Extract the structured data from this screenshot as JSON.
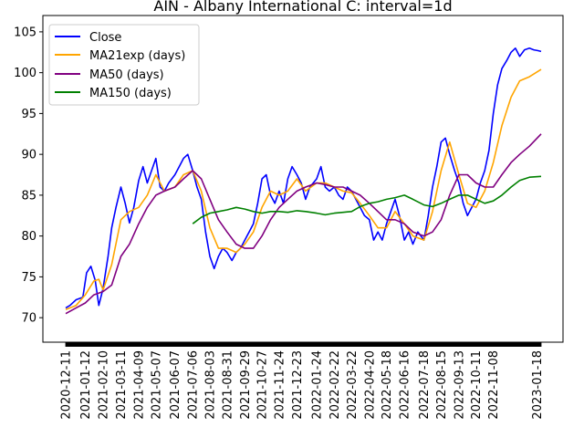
{
  "chart_data": {
    "type": "line",
    "title": "AIN - Albany International C: interval=1d",
    "xlabel": "",
    "ylabel": "",
    "ylim": [
      67,
      107
    ],
    "yticks": [
      70,
      75,
      80,
      85,
      90,
      95,
      100,
      105
    ],
    "x_start": "2020-12-11",
    "x_end": "2023-01-25",
    "xticks": [
      "2020-12-11",
      "2021-01-12",
      "2021-02-10",
      "2021-03-11",
      "2021-04-09",
      "2021-05-07",
      "2021-06-07",
      "2021-07-06",
      "2021-08-03",
      "2021-08-31",
      "2021-09-29",
      "2021-10-27",
      "2021-11-24",
      "2021-12-23",
      "2022-01-24",
      "2022-02-22",
      "2022-03-22",
      "2022-04-20",
      "2022-05-18",
      "2022-06-16",
      "2022-07-18",
      "2022-08-15",
      "2022-09-13",
      "2022-10-11",
      "2022-11-08",
      "2023-01-18"
    ],
    "legend": {
      "placement": "top-left",
      "entries": [
        "Close",
        "MA21exp (days)",
        "MA50 (days)",
        "MA150 (days)"
      ]
    },
    "series": [
      {
        "name": "Close",
        "color": "#0000ff",
        "points": [
          [
            "2020-12-11",
            71.2
          ],
          [
            "2020-12-18",
            71.5
          ],
          [
            "2020-12-28",
            72.2
          ],
          [
            "2021-01-08",
            72.5
          ],
          [
            "2021-01-14",
            75.5
          ],
          [
            "2021-01-21",
            76.3
          ],
          [
            "2021-01-28",
            74.6
          ],
          [
            "2021-02-03",
            71.5
          ],
          [
            "2021-02-10",
            73.6
          ],
          [
            "2021-02-18",
            77.5
          ],
          [
            "2021-02-24",
            81.0
          ],
          [
            "2021-03-03",
            83.5
          ],
          [
            "2021-03-11",
            86.0
          ],
          [
            "2021-03-18",
            84.0
          ],
          [
            "2021-03-25",
            81.6
          ],
          [
            "2021-04-01",
            83.5
          ],
          [
            "2021-04-09",
            86.8
          ],
          [
            "2021-04-16",
            88.5
          ],
          [
            "2021-04-23",
            86.5
          ],
          [
            "2021-04-30",
            88.0
          ],
          [
            "2021-05-07",
            89.5
          ],
          [
            "2021-05-14",
            86.0
          ],
          [
            "2021-05-21",
            85.5
          ],
          [
            "2021-05-28",
            86.5
          ],
          [
            "2021-06-07",
            87.5
          ],
          [
            "2021-06-14",
            88.5
          ],
          [
            "2021-06-21",
            89.5
          ],
          [
            "2021-06-28",
            90.0
          ],
          [
            "2021-07-06",
            88.0
          ],
          [
            "2021-07-13",
            86.0
          ],
          [
            "2021-07-20",
            84.5
          ],
          [
            "2021-07-27",
            80.5
          ],
          [
            "2021-08-03",
            77.5
          ],
          [
            "2021-08-10",
            76.0
          ],
          [
            "2021-08-17",
            77.5
          ],
          [
            "2021-08-24",
            78.5
          ],
          [
            "2021-08-31",
            78.0
          ],
          [
            "2021-09-08",
            77.0
          ],
          [
            "2021-09-15",
            78.0
          ],
          [
            "2021-09-22",
            78.5
          ],
          [
            "2021-09-29",
            79.5
          ],
          [
            "2021-10-06",
            80.5
          ],
          [
            "2021-10-13",
            81.5
          ],
          [
            "2021-10-20",
            84.0
          ],
          [
            "2021-10-27",
            87.0
          ],
          [
            "2021-11-03",
            87.5
          ],
          [
            "2021-11-10",
            85.0
          ],
          [
            "2021-11-17",
            84.0
          ],
          [
            "2021-11-24",
            85.5
          ],
          [
            "2021-12-01",
            84.0
          ],
          [
            "2021-12-08",
            87.0
          ],
          [
            "2021-12-15",
            88.5
          ],
          [
            "2021-12-23",
            87.5
          ],
          [
            "2021-12-30",
            86.5
          ],
          [
            "2022-01-06",
            84.5
          ],
          [
            "2022-01-13",
            86.0
          ],
          [
            "2022-01-24",
            87.0
          ],
          [
            "2022-01-31",
            88.5
          ],
          [
            "2022-02-07",
            86.0
          ],
          [
            "2022-02-14",
            85.5
          ],
          [
            "2022-02-22",
            86.0
          ],
          [
            "2022-03-01",
            85.0
          ],
          [
            "2022-03-08",
            84.5
          ],
          [
            "2022-03-15",
            86.0
          ],
          [
            "2022-03-22",
            85.5
          ],
          [
            "2022-03-29",
            84.5
          ],
          [
            "2022-04-05",
            83.5
          ],
          [
            "2022-04-12",
            82.5
          ],
          [
            "2022-04-20",
            82.0
          ],
          [
            "2022-04-27",
            79.5
          ],
          [
            "2022-05-04",
            80.5
          ],
          [
            "2022-05-11",
            79.5
          ],
          [
            "2022-05-18",
            81.5
          ],
          [
            "2022-05-25",
            83.0
          ],
          [
            "2022-06-01",
            84.5
          ],
          [
            "2022-06-08",
            82.5
          ],
          [
            "2022-06-16",
            79.5
          ],
          [
            "2022-06-23",
            80.5
          ],
          [
            "2022-06-30",
            79.0
          ],
          [
            "2022-07-08",
            80.5
          ],
          [
            "2022-07-18",
            79.5
          ],
          [
            "2022-07-25",
            82.5
          ],
          [
            "2022-08-01",
            86.0
          ],
          [
            "2022-08-08",
            88.5
          ],
          [
            "2022-08-15",
            91.5
          ],
          [
            "2022-08-22",
            92.0
          ],
          [
            "2022-08-29",
            90.0
          ],
          [
            "2022-09-06",
            88.0
          ],
          [
            "2022-09-13",
            86.5
          ],
          [
            "2022-09-20",
            84.0
          ],
          [
            "2022-09-27",
            82.5
          ],
          [
            "2022-10-04",
            83.5
          ],
          [
            "2022-10-11",
            84.5
          ],
          [
            "2022-10-18",
            86.5
          ],
          [
            "2022-10-25",
            88.0
          ],
          [
            "2022-11-01",
            90.5
          ],
          [
            "2022-11-08",
            95.0
          ],
          [
            "2022-11-15",
            98.5
          ],
          [
            "2022-11-22",
            100.5
          ],
          [
            "2022-11-30",
            101.5
          ],
          [
            "2022-12-07",
            102.5
          ],
          [
            "2022-12-14",
            103.0
          ],
          [
            "2022-12-21",
            102.0
          ],
          [
            "2022-12-29",
            102.8
          ],
          [
            "2023-01-06",
            103.0
          ],
          [
            "2023-01-13",
            102.8
          ],
          [
            "2023-01-20",
            102.7
          ],
          [
            "2023-01-25",
            102.6
          ]
        ]
      },
      {
        "name": "MA21exp (days)",
        "color": "#ffa500",
        "points": [
          [
            "2020-12-11",
            71.0
          ],
          [
            "2020-12-28",
            71.5
          ],
          [
            "2021-01-12",
            72.8
          ],
          [
            "2021-01-26",
            74.5
          ],
          [
            "2021-02-03",
            74.7
          ],
          [
            "2021-02-10",
            73.4
          ],
          [
            "2021-02-24",
            76.5
          ],
          [
            "2021-03-11",
            82.0
          ],
          [
            "2021-03-25",
            83.0
          ],
          [
            "2021-04-09",
            83.5
          ],
          [
            "2021-04-23",
            85.0
          ],
          [
            "2021-05-07",
            87.5
          ],
          [
            "2021-05-21",
            85.5
          ],
          [
            "2021-06-07",
            86.0
          ],
          [
            "2021-06-21",
            87.5
          ],
          [
            "2021-07-06",
            88.0
          ],
          [
            "2021-07-20",
            85.5
          ],
          [
            "2021-08-03",
            81.0
          ],
          [
            "2021-08-17",
            78.5
          ],
          [
            "2021-08-31",
            78.5
          ],
          [
            "2021-09-15",
            78.0
          ],
          [
            "2021-09-29",
            79.0
          ],
          [
            "2021-10-13",
            80.5
          ],
          [
            "2021-10-27",
            83.5
          ],
          [
            "2021-11-10",
            85.5
          ],
          [
            "2021-11-24",
            85.0
          ],
          [
            "2021-12-08",
            85.5
          ],
          [
            "2021-12-23",
            87.0
          ],
          [
            "2022-01-06",
            85.5
          ],
          [
            "2022-01-24",
            86.5
          ],
          [
            "2022-02-07",
            86.5
          ],
          [
            "2022-02-22",
            86.0
          ],
          [
            "2022-03-08",
            85.5
          ],
          [
            "2022-03-22",
            85.3
          ],
          [
            "2022-04-05",
            84.0
          ],
          [
            "2022-04-20",
            82.5
          ],
          [
            "2022-05-04",
            81.0
          ],
          [
            "2022-05-18",
            81.0
          ],
          [
            "2022-06-01",
            83.0
          ],
          [
            "2022-06-16",
            81.5
          ],
          [
            "2022-06-30",
            80.0
          ],
          [
            "2022-07-18",
            79.5
          ],
          [
            "2022-08-01",
            83.0
          ],
          [
            "2022-08-15",
            88.0
          ],
          [
            "2022-08-29",
            91.5
          ],
          [
            "2022-09-13",
            87.5
          ],
          [
            "2022-09-27",
            84.0
          ],
          [
            "2022-10-11",
            83.5
          ],
          [
            "2022-10-25",
            85.5
          ],
          [
            "2022-11-08",
            89.0
          ],
          [
            "2022-11-22",
            93.5
          ],
          [
            "2022-12-07",
            97.0
          ],
          [
            "2022-12-21",
            99.0
          ],
          [
            "2023-01-06",
            99.5
          ],
          [
            "2023-01-25",
            100.4
          ]
        ]
      },
      {
        "name": "MA50 (days)",
        "color": "#800080",
        "points": [
          [
            "2020-12-11",
            70.5
          ],
          [
            "2020-12-28",
            71.2
          ],
          [
            "2021-01-12",
            71.8
          ],
          [
            "2021-01-26",
            72.8
          ],
          [
            "2021-02-10",
            73.2
          ],
          [
            "2021-02-24",
            74.0
          ],
          [
            "2021-03-11",
            77.5
          ],
          [
            "2021-03-25",
            79.0
          ],
          [
            "2021-04-09",
            81.5
          ],
          [
            "2021-04-23",
            83.5
          ],
          [
            "2021-05-07",
            85.0
          ],
          [
            "2021-05-21",
            85.5
          ],
          [
            "2021-06-07",
            86.0
          ],
          [
            "2021-06-21",
            87.0
          ],
          [
            "2021-07-06",
            88.0
          ],
          [
            "2021-07-20",
            87.0
          ],
          [
            "2021-08-03",
            84.5
          ],
          [
            "2021-08-17",
            82.0
          ],
          [
            "2021-08-31",
            80.5
          ],
          [
            "2021-09-15",
            79.0
          ],
          [
            "2021-09-29",
            78.5
          ],
          [
            "2021-10-13",
            78.5
          ],
          [
            "2021-10-27",
            80.0
          ],
          [
            "2021-11-10",
            82.0
          ],
          [
            "2021-11-24",
            83.5
          ],
          [
            "2021-12-08",
            84.5
          ],
          [
            "2021-12-23",
            85.5
          ],
          [
            "2022-01-06",
            86.0
          ],
          [
            "2022-01-24",
            86.5
          ],
          [
            "2022-02-07",
            86.3
          ],
          [
            "2022-02-22",
            86.0
          ],
          [
            "2022-03-08",
            86.0
          ],
          [
            "2022-03-22",
            85.5
          ],
          [
            "2022-04-05",
            85.0
          ],
          [
            "2022-04-20",
            84.0
          ],
          [
            "2022-05-04",
            83.0
          ],
          [
            "2022-05-18",
            82.0
          ],
          [
            "2022-06-01",
            82.0
          ],
          [
            "2022-06-16",
            81.5
          ],
          [
            "2022-06-30",
            80.5
          ],
          [
            "2022-07-18",
            80.0
          ],
          [
            "2022-08-01",
            80.5
          ],
          [
            "2022-08-15",
            82.0
          ],
          [
            "2022-08-29",
            85.0
          ],
          [
            "2022-09-13",
            87.5
          ],
          [
            "2022-09-27",
            87.5
          ],
          [
            "2022-10-11",
            86.5
          ],
          [
            "2022-10-25",
            86.0
          ],
          [
            "2022-11-08",
            86.0
          ],
          [
            "2022-11-22",
            87.5
          ],
          [
            "2022-12-07",
            89.0
          ],
          [
            "2022-12-21",
            90.0
          ],
          [
            "2023-01-06",
            91.0
          ],
          [
            "2023-01-25",
            92.5
          ]
        ]
      },
      {
        "name": "MA150 (days)",
        "color": "#008000",
        "points": [
          [
            "2021-07-06",
            81.5
          ],
          [
            "2021-07-20",
            82.3
          ],
          [
            "2021-08-03",
            82.8
          ],
          [
            "2021-08-17",
            83.0
          ],
          [
            "2021-08-31",
            83.2
          ],
          [
            "2021-09-15",
            83.5
          ],
          [
            "2021-09-29",
            83.3
          ],
          [
            "2021-10-13",
            83.0
          ],
          [
            "2021-10-27",
            82.8
          ],
          [
            "2021-11-10",
            83.0
          ],
          [
            "2021-11-24",
            83.0
          ],
          [
            "2021-12-08",
            82.9
          ],
          [
            "2021-12-23",
            83.1
          ],
          [
            "2022-01-06",
            83.0
          ],
          [
            "2022-01-24",
            82.8
          ],
          [
            "2022-02-07",
            82.6
          ],
          [
            "2022-02-22",
            82.8
          ],
          [
            "2022-03-08",
            82.9
          ],
          [
            "2022-03-22",
            83.0
          ],
          [
            "2022-04-05",
            83.6
          ],
          [
            "2022-04-20",
            84.0
          ],
          [
            "2022-05-04",
            84.2
          ],
          [
            "2022-05-18",
            84.5
          ],
          [
            "2022-06-01",
            84.7
          ],
          [
            "2022-06-16",
            85.0
          ],
          [
            "2022-06-30",
            84.5
          ],
          [
            "2022-07-18",
            83.8
          ],
          [
            "2022-08-01",
            83.6
          ],
          [
            "2022-08-15",
            84.0
          ],
          [
            "2022-08-29",
            84.5
          ],
          [
            "2022-09-13",
            85.0
          ],
          [
            "2022-09-27",
            85.0
          ],
          [
            "2022-10-11",
            84.5
          ],
          [
            "2022-10-25",
            84.0
          ],
          [
            "2022-11-08",
            84.3
          ],
          [
            "2022-11-22",
            85.0
          ],
          [
            "2022-12-07",
            86.0
          ],
          [
            "2022-12-21",
            86.8
          ],
          [
            "2023-01-06",
            87.2
          ],
          [
            "2023-01-25",
            87.3
          ]
        ]
      }
    ]
  }
}
